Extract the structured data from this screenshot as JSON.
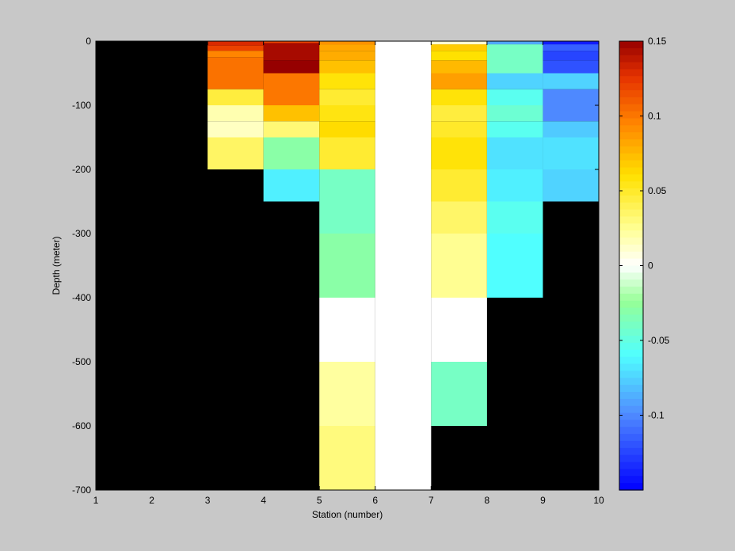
{
  "chart_data": {
    "type": "heatmap",
    "title": "",
    "xlabel": "Station (number)",
    "ylabel": "Depth (meter)",
    "xlim": [
      1,
      10
    ],
    "ylim": [
      -700,
      0
    ],
    "xticks": [
      1,
      2,
      3,
      4,
      5,
      6,
      7,
      8,
      9,
      10
    ],
    "yticks": [
      0,
      -100,
      -200,
      -300,
      -400,
      -500,
      -600,
      -700
    ],
    "background_color": "#000000",
    "colormap": "jet-with-white-center",
    "clim": [
      -0.15,
      0.15
    ],
    "colorbar": {
      "location": "right",
      "ticks": [
        0.15,
        0.1,
        0.05,
        0,
        -0.05,
        -0.1
      ],
      "tick_labels": [
        "0.15",
        "0.1",
        "0.05",
        "0",
        "-0.05",
        "-0.1"
      ]
    },
    "cells": [
      {
        "x": [
          3,
          4
        ],
        "y": [
          -7,
          0
        ],
        "v": 0.13
      },
      {
        "x": [
          3,
          4
        ],
        "y": [
          -15,
          -7
        ],
        "v": 0.12
      },
      {
        "x": [
          3,
          4
        ],
        "y": [
          -25,
          -15
        ],
        "v": 0.095
      },
      {
        "x": [
          3,
          4
        ],
        "y": [
          -75,
          -25
        ],
        "v": 0.102
      },
      {
        "x": [
          3,
          4
        ],
        "y": [
          -100,
          -75
        ],
        "v": 0.045
      },
      {
        "x": [
          3,
          4
        ],
        "y": [
          -125,
          -100
        ],
        "v": 0.018
      },
      {
        "x": [
          3,
          4
        ],
        "y": [
          -150,
          -125
        ],
        "v": 0.014
      },
      {
        "x": [
          3,
          4
        ],
        "y": [
          -200,
          -150
        ],
        "v": 0.036
      },
      {
        "x": [
          4,
          5
        ],
        "y": [
          -3,
          0
        ],
        "v": 0.12
      },
      {
        "x": [
          4,
          5
        ],
        "y": [
          -30,
          -3
        ],
        "v": 0.145
      },
      {
        "x": [
          4,
          5
        ],
        "y": [
          -50,
          -30
        ],
        "v": 0.15
      },
      {
        "x": [
          4,
          5
        ],
        "y": [
          -100,
          -50
        ],
        "v": 0.1
      },
      {
        "x": [
          4,
          5
        ],
        "y": [
          -125,
          -100
        ],
        "v": 0.072
      },
      {
        "x": [
          4,
          5
        ],
        "y": [
          -150,
          -125
        ],
        "v": 0.032
      },
      {
        "x": [
          4,
          5
        ],
        "y": [
          -200,
          -150
        ],
        "v": -0.03
      },
      {
        "x": [
          4,
          5
        ],
        "y": [
          -250,
          -200
        ],
        "v": -0.065
      },
      {
        "x": [
          5,
          6
        ],
        "y": [
          -5,
          0
        ],
        "v": 0.09
      },
      {
        "x": [
          5,
          6
        ],
        "y": [
          -15,
          -5
        ],
        "v": 0.082
      },
      {
        "x": [
          5,
          6
        ],
        "y": [
          -30,
          -15
        ],
        "v": 0.08
      },
      {
        "x": [
          5,
          6
        ],
        "y": [
          -50,
          -30
        ],
        "v": 0.072
      },
      {
        "x": [
          5,
          6
        ],
        "y": [
          -75,
          -50
        ],
        "v": 0.058
      },
      {
        "x": [
          5,
          6
        ],
        "y": [
          -100,
          -75
        ],
        "v": 0.048
      },
      {
        "x": [
          5,
          6
        ],
        "y": [
          -125,
          -100
        ],
        "v": 0.056
      },
      {
        "x": [
          5,
          6
        ],
        "y": [
          -150,
          -125
        ],
        "v": 0.062
      },
      {
        "x": [
          5,
          6
        ],
        "y": [
          -200,
          -150
        ],
        "v": 0.048
      },
      {
        "x": [
          5,
          6
        ],
        "y": [
          -300,
          -200
        ],
        "v": -0.04
      },
      {
        "x": [
          5,
          6
        ],
        "y": [
          -400,
          -300
        ],
        "v": -0.03
      },
      {
        "x": [
          5,
          6
        ],
        "y": [
          -500,
          -400
        ],
        "v": 0.0
      },
      {
        "x": [
          5,
          6
        ],
        "y": [
          -600,
          -500
        ],
        "v": 0.022
      },
      {
        "x": [
          5,
          6
        ],
        "y": [
          -700,
          -600
        ],
        "v": 0.03
      },
      {
        "x": [
          6,
          7
        ],
        "y": [
          -700,
          0
        ],
        "v": 0.0
      },
      {
        "x": [
          7,
          8
        ],
        "y": [
          -5,
          0
        ],
        "v": 0.01
      },
      {
        "x": [
          7,
          8
        ],
        "y": [
          -15,
          -5
        ],
        "v": 0.068
      },
      {
        "x": [
          7,
          8
        ],
        "y": [
          -30,
          -15
        ],
        "v": 0.06
      },
      {
        "x": [
          7,
          8
        ],
        "y": [
          -50,
          -30
        ],
        "v": 0.075
      },
      {
        "x": [
          7,
          8
        ],
        "y": [
          -75,
          -50
        ],
        "v": 0.085
      },
      {
        "x": [
          7,
          8
        ],
        "y": [
          -100,
          -75
        ],
        "v": 0.058
      },
      {
        "x": [
          7,
          8
        ],
        "y": [
          -125,
          -100
        ],
        "v": 0.045
      },
      {
        "x": [
          7,
          8
        ],
        "y": [
          -150,
          -125
        ],
        "v": 0.05
      },
      {
        "x": [
          7,
          8
        ],
        "y": [
          -200,
          -150
        ],
        "v": 0.058
      },
      {
        "x": [
          7,
          8
        ],
        "y": [
          -250,
          -200
        ],
        "v": 0.048
      },
      {
        "x": [
          7,
          8
        ],
        "y": [
          -300,
          -250
        ],
        "v": 0.035
      },
      {
        "x": [
          7,
          8
        ],
        "y": [
          -400,
          -300
        ],
        "v": 0.025
      },
      {
        "x": [
          7,
          8
        ],
        "y": [
          -500,
          -400
        ],
        "v": 0.0
      },
      {
        "x": [
          7,
          8
        ],
        "y": [
          -600,
          -500
        ],
        "v": -0.04
      },
      {
        "x": [
          8,
          9
        ],
        "y": [
          -5,
          0
        ],
        "v": -0.09
      },
      {
        "x": [
          8,
          9
        ],
        "y": [
          -50,
          -5
        ],
        "v": -0.04
      },
      {
        "x": [
          8,
          9
        ],
        "y": [
          -75,
          -50
        ],
        "v": -0.075
      },
      {
        "x": [
          8,
          9
        ],
        "y": [
          -100,
          -75
        ],
        "v": -0.055
      },
      {
        "x": [
          8,
          9
        ],
        "y": [
          -125,
          -100
        ],
        "v": -0.045
      },
      {
        "x": [
          8,
          9
        ],
        "y": [
          -150,
          -125
        ],
        "v": -0.055
      },
      {
        "x": [
          8,
          9
        ],
        "y": [
          -200,
          -150
        ],
        "v": -0.07
      },
      {
        "x": [
          8,
          9
        ],
        "y": [
          -250,
          -200
        ],
        "v": -0.065
      },
      {
        "x": [
          8,
          9
        ],
        "y": [
          -300,
          -250
        ],
        "v": -0.055
      },
      {
        "x": [
          8,
          9
        ],
        "y": [
          -400,
          -300
        ],
        "v": -0.06
      },
      {
        "x": [
          9,
          10
        ],
        "y": [
          -5,
          0
        ],
        "v": -0.14
      },
      {
        "x": [
          9,
          10
        ],
        "y": [
          -15,
          -5
        ],
        "v": -0.115
      },
      {
        "x": [
          9,
          10
        ],
        "y": [
          -30,
          -15
        ],
        "v": -0.125
      },
      {
        "x": [
          9,
          10
        ],
        "y": [
          -50,
          -30
        ],
        "v": -0.12
      },
      {
        "x": [
          9,
          10
        ],
        "y": [
          -75,
          -50
        ],
        "v": -0.075
      },
      {
        "x": [
          9,
          10
        ],
        "y": [
          -125,
          -75
        ],
        "v": -0.1
      },
      {
        "x": [
          9,
          10
        ],
        "y": [
          -150,
          -125
        ],
        "v": -0.078
      },
      {
        "x": [
          9,
          10
        ],
        "y": [
          -200,
          -150
        ],
        "v": -0.07
      },
      {
        "x": [
          9,
          10
        ],
        "y": [
          -250,
          -200
        ],
        "v": -0.075
      }
    ]
  }
}
